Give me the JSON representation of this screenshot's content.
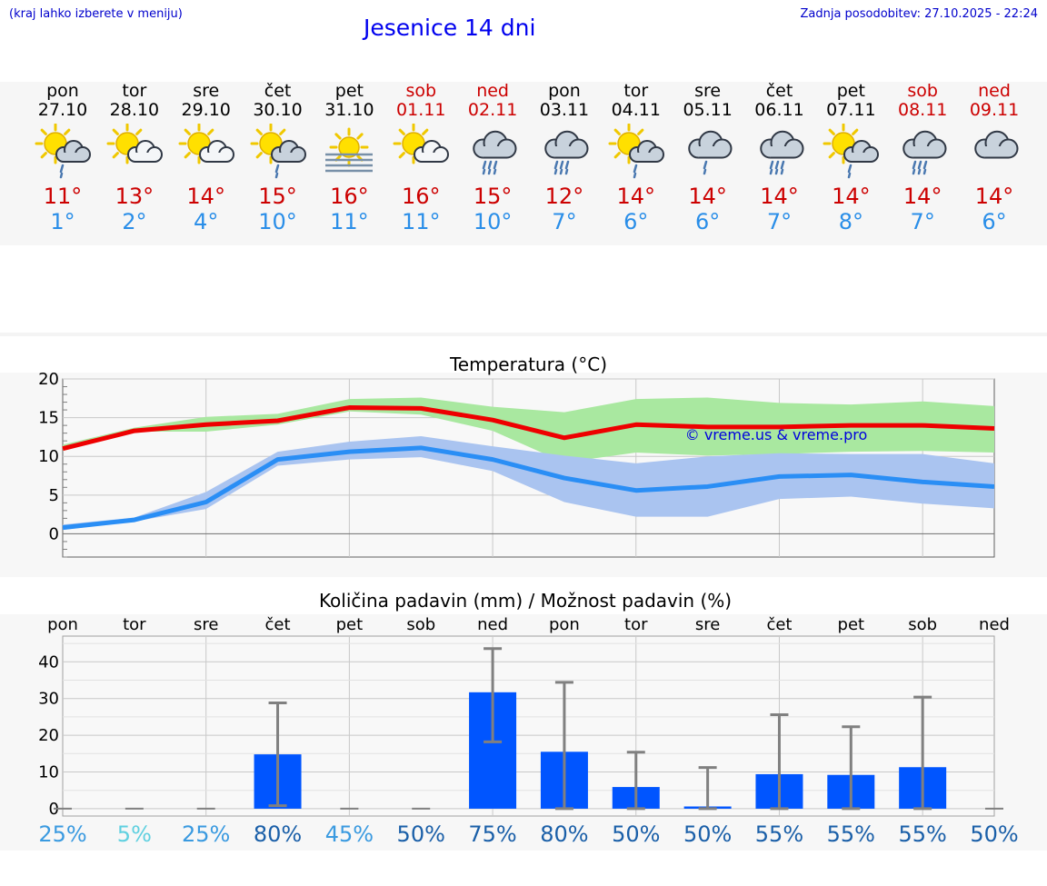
{
  "header": {
    "hint": "(kraj lahko izberete v meniju)",
    "title": "Jesenice 14 dni",
    "updated": "Zadnja posodobitev: 27.10.2025 - 22:24"
  },
  "days": [
    {
      "name": "pon",
      "date": "27.10",
      "icon": "sun-cloud-rain-icon",
      "max": "11°",
      "min": "1°",
      "weekend": false
    },
    {
      "name": "tor",
      "date": "28.10",
      "icon": "sun-cloud-icon",
      "max": "13°",
      "min": "2°",
      "weekend": false
    },
    {
      "name": "sre",
      "date": "29.10",
      "icon": "sun-cloud-icon",
      "max": "14°",
      "min": "4°",
      "weekend": false
    },
    {
      "name": "čet",
      "date": "30.10",
      "icon": "sun-cloud-rain-icon",
      "max": "15°",
      "min": "10°",
      "weekend": false
    },
    {
      "name": "pet",
      "date": "31.10",
      "icon": "sun-fog-icon",
      "max": "16°",
      "min": "11°",
      "weekend": false
    },
    {
      "name": "sob",
      "date": "01.11",
      "icon": "sun-cloud-icon",
      "max": "16°",
      "min": "11°",
      "weekend": true
    },
    {
      "name": "ned",
      "date": "02.11",
      "icon": "cloud-rain-icon",
      "max": "15°",
      "min": "10°",
      "weekend": true
    },
    {
      "name": "pon",
      "date": "03.11",
      "icon": "cloud-rain-icon",
      "max": "12°",
      "min": "7°",
      "weekend": false
    },
    {
      "name": "tor",
      "date": "04.11",
      "icon": "sun-cloud-rain-icon",
      "max": "14°",
      "min": "6°",
      "weekend": false
    },
    {
      "name": "sre",
      "date": "05.11",
      "icon": "cloud-light-rain-icon",
      "max": "14°",
      "min": "6°",
      "weekend": false
    },
    {
      "name": "čet",
      "date": "06.11",
      "icon": "cloud-rain-icon",
      "max": "14°",
      "min": "7°",
      "weekend": false
    },
    {
      "name": "pet",
      "date": "07.11",
      "icon": "sun-cloud-rain-icon",
      "max": "14°",
      "min": "8°",
      "weekend": false
    },
    {
      "name": "sob",
      "date": "08.11",
      "icon": "cloud-rain-icon",
      "max": "14°",
      "min": "7°",
      "weekend": true
    },
    {
      "name": "ned",
      "date": "09.11",
      "icon": "cloud-icon",
      "max": "14°",
      "min": "6°",
      "weekend": true
    }
  ],
  "colors": {
    "max_line": "#ee0000",
    "min_line": "#2a8ef5",
    "max_band": "#a9e8a0",
    "min_band": "#aac4f0",
    "bars": "#0055ff",
    "errbar": "#808080",
    "watermark": "#0000dd",
    "prob_high": "#1a5fa8",
    "prob_mid": "#3a9ae0",
    "prob_low": "#5fd0e0"
  },
  "chart_data": [
    {
      "type": "line",
      "title": "Temperatura (°C)",
      "watermark": "© vreme.us & vreme.pro",
      "ylim": [
        -3,
        20
      ],
      "yticks": [
        0,
        5,
        10,
        15,
        20
      ],
      "grid": true,
      "x": [
        0,
        1,
        2,
        3,
        4,
        5,
        6,
        7,
        8,
        9,
        10,
        11,
        12,
        13
      ],
      "series": [
        {
          "role": "max",
          "values": [
            11,
            13.3,
            14.1,
            14.6,
            16.3,
            16.2,
            14.7,
            12.4,
            14.1,
            13.8,
            13.8,
            14,
            14,
            13.6
          ]
        },
        {
          "role": "max_low",
          "values": [
            10.7,
            13.2,
            13.2,
            14.1,
            15.8,
            15.4,
            13.3,
            9.2,
            10.5,
            10.1,
            10.3,
            10.6,
            10.7,
            10.5
          ]
        },
        {
          "role": "max_high",
          "values": [
            11.5,
            13.7,
            15.1,
            15.5,
            17.4,
            17.6,
            16.4,
            15.7,
            17.4,
            17.6,
            16.9,
            16.7,
            17.1,
            16.5
          ]
        },
        {
          "role": "min",
          "values": [
            0.8,
            1.8,
            4.1,
            9.6,
            10.6,
            11.1,
            9.6,
            7.2,
            5.6,
            6.1,
            7.4,
            7.6,
            6.7,
            6.1
          ]
        },
        {
          "role": "min_low",
          "values": [
            0.5,
            1.6,
            3.2,
            8.8,
            9.6,
            9.9,
            8.1,
            4.1,
            2.2,
            2.2,
            4.5,
            4.8,
            3.9,
            3.3
          ]
        },
        {
          "role": "min_high",
          "values": [
            1.2,
            2.1,
            5.4,
            10.6,
            11.9,
            12.6,
            11.3,
            10.1,
            9.1,
            10,
            10.4,
            10.3,
            10.3,
            9.1
          ]
        }
      ]
    },
    {
      "type": "bar",
      "title": "Količina padavin (mm) / Možnost padavin (%)",
      "categories": [
        "pon",
        "tor",
        "sre",
        "čet",
        "pet",
        "sob",
        "ned",
        "pon",
        "tor",
        "sre",
        "čet",
        "pet",
        "sob",
        "ned"
      ],
      "ylim": [
        -2,
        47
      ],
      "yticks": [
        0,
        10,
        20,
        30,
        40
      ],
      "values": [
        0,
        0,
        0,
        14.8,
        0,
        0,
        31.7,
        15.5,
        5.9,
        0.6,
        9.4,
        9.2,
        11.3,
        0
      ],
      "error_low": [
        0,
        0,
        0,
        0.8,
        0,
        0,
        18.2,
        0,
        0,
        0,
        0,
        0,
        0,
        0
      ],
      "error_high": [
        0,
        0,
        0,
        28.8,
        0,
        0,
        43.6,
        34.4,
        15.4,
        11.2,
        25.6,
        22.3,
        30.4,
        0
      ],
      "probability": [
        "25%",
        "5%",
        "25%",
        "80%",
        "45%",
        "50%",
        "75%",
        "80%",
        "50%",
        "50%",
        "55%",
        "55%",
        "55%",
        "50%"
      ]
    }
  ]
}
